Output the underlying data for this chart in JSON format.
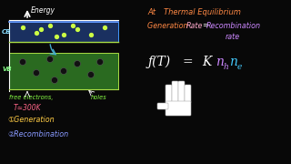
{
  "bg_color": "#080808",
  "title_at": "At",
  "title_thermal": "Thermal Equilibrium",
  "title_color": "#ff8844",
  "gen_rate_text1": "Generation ",
  "gen_rate_text2": "Rate",
  "gen_rate_color1": "#ff8844",
  "gen_rate_color2": "#ffaacc",
  "equals_color": "#ffffff",
  "recomb_text": "Recombination",
  "recomb_color": "#cc88ff",
  "rate_text": "rate",
  "rate_color": "#cc88ff",
  "energy_label": "Energy",
  "energy_color": "#ffffff",
  "CB_label": "CB",
  "CB_color": "#88ddff",
  "VB_label": "VB",
  "VB_color": "#88ff88",
  "free_electrons_text": "free electrons,",
  "free_electrons_color": "#88ff44",
  "holes_text": "holes",
  "holes_color": "#88ff44",
  "temp_text": "T≃300K",
  "temp_color": "#ff6688",
  "gen_label": "①Generation",
  "gen_label_color": "#ffcc44",
  "rec_label": "②Recombination",
  "rec_label_color": "#8899ff",
  "eq_f_color": "#ffffff",
  "eq_eq_color": "#ffffff",
  "eq_K_color": "#ffffff",
  "eq_nh_color": "#cc88ff",
  "eq_h_color": "#cc88ff",
  "eq_ne_color": "#44ccff",
  "eq_e_color": "#44ccff"
}
